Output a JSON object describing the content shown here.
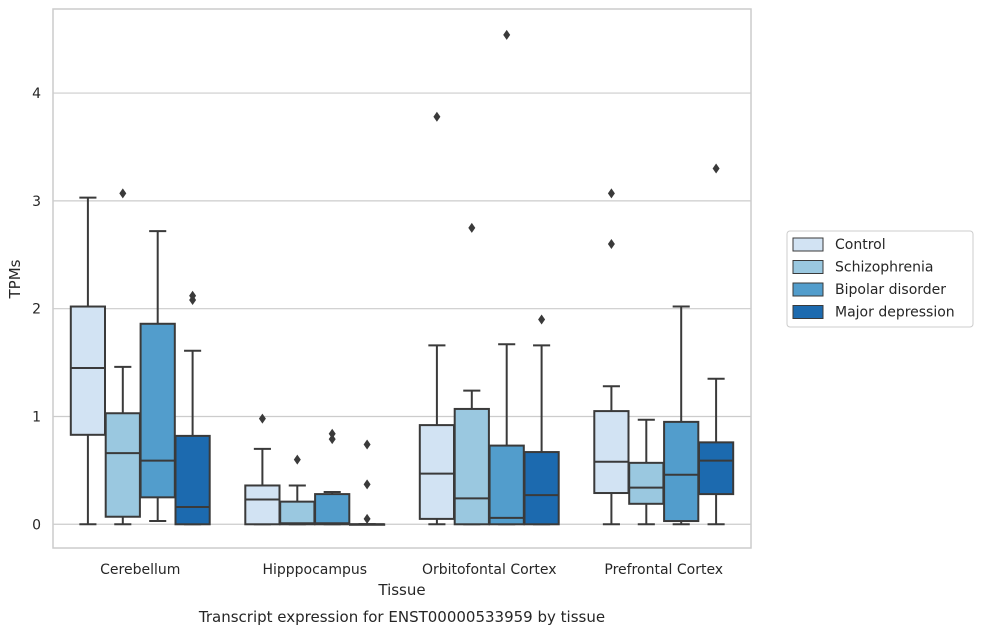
{
  "chart_data": {
    "type": "box",
    "xlabel": "Tissue",
    "ylabel": "TPMs",
    "caption": "Transcript expression for ENST00000533959 by tissue",
    "ylim": [
      -0.22,
      4.78
    ],
    "yticks": [
      0,
      1,
      2,
      3,
      4
    ],
    "grid": "horizontal",
    "legend_position": "right",
    "categories": [
      "Cerebellum",
      "Hipppocampus",
      "Orbitofontal Cortex",
      "Prefrontal Cortex"
    ],
    "series": [
      {
        "name": "Control",
        "color": "#d2e3f3",
        "boxes": [
          {
            "whislo": 0.0,
            "q1": 0.83,
            "med": 1.45,
            "q3": 2.02,
            "whishi": 3.03,
            "fliers": []
          },
          {
            "whislo": 0.0,
            "q1": 0.0,
            "med": 0.23,
            "q3": 0.36,
            "whishi": 0.7,
            "fliers": [
              0.98
            ]
          },
          {
            "whislo": 0.0,
            "q1": 0.05,
            "med": 0.47,
            "q3": 0.92,
            "whishi": 1.66,
            "fliers": [
              3.78
            ]
          },
          {
            "whislo": 0.0,
            "q1": 0.29,
            "med": 0.58,
            "q3": 1.05,
            "whishi": 1.28,
            "fliers": [
              2.6,
              3.07
            ]
          }
        ]
      },
      {
        "name": "Schizophrenia",
        "color": "#9ac8e0",
        "boxes": [
          {
            "whislo": 0.0,
            "q1": 0.07,
            "med": 0.66,
            "q3": 1.03,
            "whishi": 1.46,
            "fliers": [
              3.07
            ]
          },
          {
            "whislo": 0.0,
            "q1": 0.0,
            "med": 0.01,
            "q3": 0.21,
            "whishi": 0.36,
            "fliers": [
              0.6
            ]
          },
          {
            "whislo": 0.0,
            "q1": 0.0,
            "med": 0.24,
            "q3": 1.07,
            "whishi": 1.24,
            "fliers": [
              2.75
            ]
          },
          {
            "whislo": 0.0,
            "q1": 0.19,
            "med": 0.34,
            "q3": 0.57,
            "whishi": 0.97,
            "fliers": []
          }
        ]
      },
      {
        "name": "Bipolar disorder",
        "color": "#529dcc",
        "boxes": [
          {
            "whislo": 0.03,
            "q1": 0.25,
            "med": 0.59,
            "q3": 1.86,
            "whishi": 2.72,
            "fliers": []
          },
          {
            "whislo": 0.0,
            "q1": 0.0,
            "med": 0.01,
            "q3": 0.28,
            "whishi": 0.3,
            "fliers": [
              0.79,
              0.84
            ]
          },
          {
            "whislo": 0.0,
            "q1": 0.0,
            "med": 0.06,
            "q3": 0.73,
            "whishi": 1.67,
            "fliers": [
              4.54
            ]
          },
          {
            "whislo": 0.0,
            "q1": 0.03,
            "med": 0.46,
            "q3": 0.95,
            "whishi": 2.02,
            "fliers": []
          }
        ]
      },
      {
        "name": "Major depression",
        "color": "#1c6aaf",
        "boxes": [
          {
            "whislo": 0.0,
            "q1": 0.0,
            "med": 0.16,
            "q3": 0.82,
            "whishi": 1.61,
            "fliers": [
              2.08,
              2.12
            ]
          },
          {
            "whislo": 0.0,
            "q1": 0.0,
            "med": 0.0,
            "q3": 0.0,
            "whishi": 0.0,
            "fliers": [
              0.05,
              0.37,
              0.74
            ]
          },
          {
            "whislo": 0.0,
            "q1": 0.0,
            "med": 0.27,
            "q3": 0.67,
            "whishi": 1.66,
            "fliers": [
              1.9
            ]
          },
          {
            "whislo": 0.0,
            "q1": 0.28,
            "med": 0.59,
            "q3": 0.76,
            "whishi": 1.35,
            "fliers": [
              3.3
            ]
          }
        ]
      }
    ]
  }
}
